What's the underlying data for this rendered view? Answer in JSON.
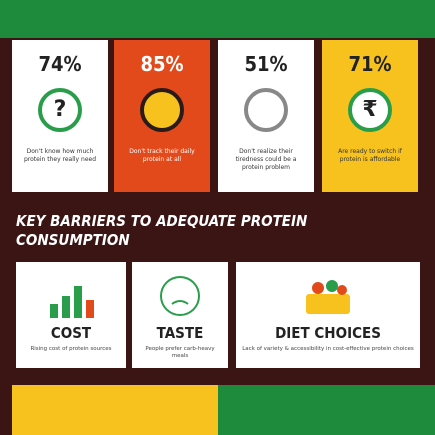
{
  "stats": [
    {
      "value": "74%",
      "icon": "?",
      "text": "Don't know how much protein they really need"
    },
    {
      "value": "85%",
      "icon": "",
      "text": "Don't track their daily protein at all"
    },
    {
      "value": "51%",
      "icon": "",
      "text": "Don't realize their tiredness could be a protein problem"
    },
    {
      "value": "71%",
      "icon": "₹",
      "text": "Are ready to switch if protein is affordable"
    }
  ],
  "section": {
    "title": "KEY BARRIERS TO ADEQUATE PROTEIN CONSUMPTION"
  },
  "barriers": [
    {
      "label": "COST",
      "text": "Rising cost of protein sources"
    },
    {
      "label": "TASTE",
      "text": "People prefer carb-heavy meals"
    },
    {
      "label": "DIET CHOICES",
      "text": "Lack of variety & accessibility in cost-effective protein choices"
    }
  ]
}
